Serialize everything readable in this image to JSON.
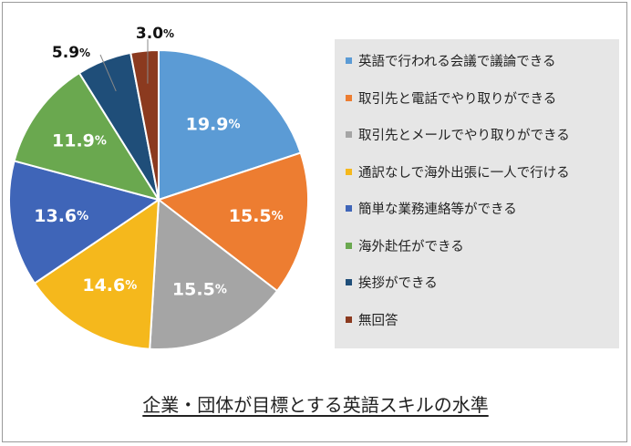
{
  "chart_data": {
    "type": "pie",
    "title": "企業・団体が目標とする英語スキルの水準",
    "unit": "%",
    "legend_position": "right",
    "slices": [
      {
        "name": "英語で行われる会議で議論できる",
        "value": 19.9,
        "label": "19.9",
        "color": "#5b9bd5",
        "label_color": "#ffffff"
      },
      {
        "name": "取引先と電話でやり取りができる",
        "value": 15.5,
        "label": "15.5",
        "color": "#ed7d31",
        "label_color": "#ffffff"
      },
      {
        "name": "取引先とメールでやり取りができる",
        "value": 15.5,
        "label": "15.5",
        "color": "#a5a5a5",
        "label_color": "#ffffff"
      },
      {
        "name": "通訳なしで海外出張に一人で行ける",
        "value": 14.6,
        "label": "14.6",
        "color": "#f5b81c",
        "label_color": "#ffffff"
      },
      {
        "name": "簡単な業務連絡等ができる",
        "value": 13.6,
        "label": "13.6",
        "color": "#3f65b8",
        "label_color": "#ffffff"
      },
      {
        "name": "海外赴任ができる",
        "value": 11.9,
        "label": "11.9",
        "color": "#6aa84f",
        "label_color": "#ffffff"
      },
      {
        "name": "挨拶ができる",
        "value": 5.9,
        "label": "5.9",
        "color": "#1f4e79",
        "label_color": "#111111"
      },
      {
        "name": "無回答",
        "value": 3.0,
        "label": "3.0",
        "color": "#8b3a1f",
        "label_color": "#111111"
      }
    ]
  }
}
